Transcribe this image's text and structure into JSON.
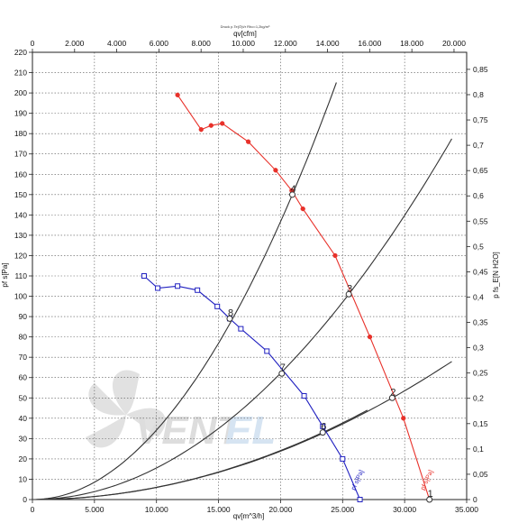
{
  "chart_data": {
    "type": "line",
    "title": "Druck p.Te(Ö)t/r Rho=1,2kg/m³",
    "x_bottom": {
      "label": "qv[m^3/h]",
      "range": [
        0,
        35000
      ],
      "ticks": [
        0,
        5000,
        10000,
        15000,
        20000,
        25000,
        30000,
        35000
      ],
      "tick_labels": [
        "0",
        "5.000",
        "10.000",
        "15.000",
        "20.000",
        "25.000",
        "30.000",
        "35.000"
      ]
    },
    "x_top": {
      "label": "qv[cfm]",
      "range": [
        0,
        20600
      ],
      "ticks": [
        0,
        2000,
        4000,
        6000,
        8000,
        10000,
        12000,
        14000,
        16000,
        18000,
        20000
      ],
      "tick_labels": [
        "0",
        "2.000",
        "4.000",
        "6.000",
        "8.000",
        "10.000",
        "12.000",
        "14.000",
        "16.000",
        "18.000",
        "20.000"
      ]
    },
    "y_left": {
      "label": "pf s[Pa]",
      "range": [
        0,
        220
      ],
      "ticks": [
        0,
        10,
        20,
        30,
        40,
        50,
        60,
        70,
        80,
        90,
        100,
        110,
        120,
        130,
        140,
        150,
        160,
        170,
        180,
        190,
        200,
        210,
        220
      ],
      "tick_labels": [
        "0",
        "10",
        "20",
        "30",
        "40",
        "50",
        "60",
        "70",
        "80",
        "90",
        "100",
        "110",
        "120",
        "130",
        "140",
        "150",
        "160",
        "170",
        "180",
        "190",
        "200",
        "210",
        "220"
      ]
    },
    "y_right": {
      "label": "p fs_E[N H2O]",
      "range": [
        0,
        0.8837
      ],
      "ticks": [
        0,
        0.05,
        0.1,
        0.15,
        0.2,
        0.25,
        0.3,
        0.35,
        0.4,
        0.45,
        0.5,
        0.55,
        0.6,
        0.65,
        0.7,
        0.75,
        0.8,
        0.85
      ],
      "tick_labels": [
        "0",
        "0,05",
        "0,1",
        "0,15",
        "0,2",
        "0,25",
        "0,3",
        "0,35",
        "0,4",
        "0,45",
        "0,5",
        "0,55",
        "0,6",
        "0,65",
        "0,7",
        "0,75",
        "0,8",
        "0,85"
      ]
    },
    "grid": true,
    "series": [
      {
        "name": "pf s[Pa]",
        "color": "#e8312a",
        "marker": "filled-circle",
        "points": [
          [
            11700,
            199
          ],
          [
            13600,
            182
          ],
          [
            14400,
            184
          ],
          [
            15300,
            185
          ],
          [
            17400,
            176
          ],
          [
            19600,
            162
          ],
          [
            20900,
            152
          ],
          [
            21800,
            143
          ],
          [
            24400,
            120
          ],
          [
            27200,
            80
          ],
          [
            29900,
            40
          ],
          [
            32000,
            0
          ]
        ]
      },
      {
        "name": "pf s[Pa]",
        "color": "#2020c0",
        "marker": "open-square",
        "points": [
          [
            9000,
            110
          ],
          [
            10100,
            104
          ],
          [
            11700,
            105
          ],
          [
            13300,
            103
          ],
          [
            14900,
            95
          ],
          [
            15900,
            89
          ],
          [
            16800,
            84
          ],
          [
            18900,
            73
          ],
          [
            21900,
            51
          ],
          [
            23400,
            36
          ],
          [
            25000,
            20
          ],
          [
            26400,
            0
          ]
        ]
      }
    ],
    "system_curves": [
      {
        "through": [
          20950,
          150
        ],
        "end": [
          24500,
          210
        ]
      },
      {
        "through": [
          25500,
          101
        ],
        "end": [
          33800,
          174
        ]
      },
      {
        "through": [
          29000,
          50
        ],
        "end": [
          33800,
          67
        ]
      },
      {
        "through": [
          23400,
          33
        ],
        "end": [
          27000,
          44
        ]
      }
    ],
    "operating_points": [
      {
        "label": "4",
        "x": 20950,
        "y": 150
      },
      {
        "label": "3",
        "x": 25500,
        "y": 101
      },
      {
        "label": "2",
        "x": 29000,
        "y": 50
      },
      {
        "label": "1",
        "x": 32000,
        "y": 0
      },
      {
        "label": "8",
        "x": 15900,
        "y": 89
      },
      {
        "label": "7",
        "x": 20100,
        "y": 62
      },
      {
        "label": "6",
        "x": 23400,
        "y": 33
      }
    ]
  },
  "watermark": {
    "text_left": "VENT",
    "text_right": "EL"
  }
}
